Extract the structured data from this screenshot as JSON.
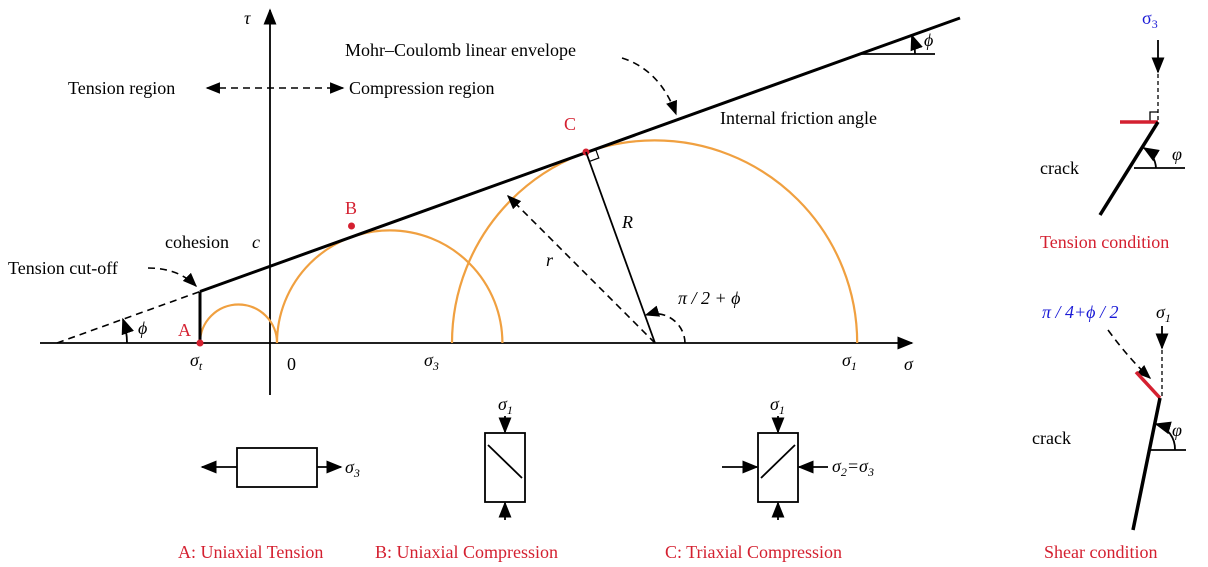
{
  "axes": {
    "tau": "τ",
    "sigma": "σ",
    "origin": "0"
  },
  "envelope": {
    "label": "Mohr–Coulomb linear envelope",
    "angle": "ϕ",
    "angle_label": "Internal friction angle"
  },
  "regions": {
    "tension": "Tension region",
    "compression": "Compression region"
  },
  "points": {
    "a": "A",
    "b": "B",
    "c": "C"
  },
  "cohesion": {
    "label": "cohesion",
    "symbol": "c"
  },
  "tension_cutoff": "Tension cut-off",
  "left_angle": "ϕ",
  "radii": {
    "big": "R",
    "small": "r",
    "angle": "π / 2 + ϕ"
  },
  "sigma_marks": {
    "t": {
      "base": "σ",
      "sub": "t"
    },
    "s3": {
      "base": "σ",
      "sub": "3"
    },
    "s1": {
      "base": "σ",
      "sub": "1"
    }
  },
  "loading": [
    {
      "caption": "A: Uniaxial Tension",
      "stress": {
        "base": "σ",
        "sub": "3"
      }
    },
    {
      "caption": "B: Uniaxial Compression",
      "stress": {
        "base": "σ",
        "sub": "1"
      }
    },
    {
      "caption": "C: Triaxial Compression",
      "stress": {
        "base": "σ",
        "sub": "1"
      },
      "lateral": [
        {
          "base": "σ",
          "sub": "2"
        },
        "=",
        {
          "base": "σ",
          "sub": "3"
        }
      ]
    }
  ],
  "conditions": [
    {
      "stress": {
        "base": "σ",
        "sub": "3"
      },
      "crack": "crack",
      "angle": "φ",
      "caption": "Tension condition"
    },
    {
      "failure_angle": "π / 4+ϕ / 2",
      "stress": {
        "base": "σ",
        "sub": "1"
      },
      "crack": "crack",
      "angle": "φ",
      "caption": "Shear condition"
    }
  ]
}
